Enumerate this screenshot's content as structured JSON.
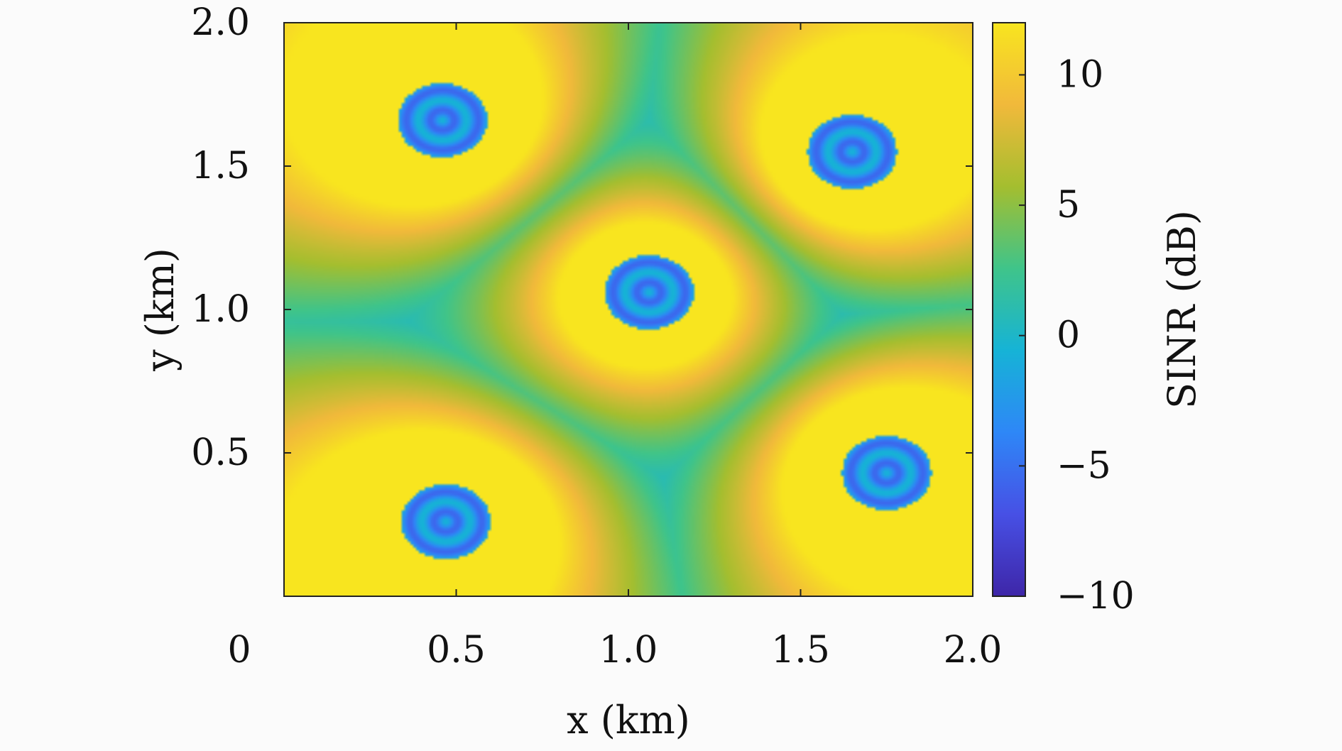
{
  "chart_data": {
    "type": "heatmap",
    "title": "",
    "xlabel": "x (km)",
    "ylabel": "y (km)",
    "xlim": [
      0,
      2.0
    ],
    "ylim": [
      0,
      2.0
    ],
    "x_ticks": [
      {
        "value": 0,
        "label": "0"
      },
      {
        "value": 0.5,
        "label": "0.5"
      },
      {
        "value": 1.0,
        "label": "1.0"
      },
      {
        "value": 1.5,
        "label": "1.5"
      },
      {
        "value": 2.0,
        "label": "2.0"
      }
    ],
    "y_ticks": [
      {
        "value": 0.5,
        "label": "0.5"
      },
      {
        "value": 1.0,
        "label": "1.0"
      },
      {
        "value": 1.5,
        "label": "1.5"
      },
      {
        "value": 2.0,
        "label": "2.0"
      }
    ],
    "colorbar": {
      "label": "SINR (dB)",
      "range": [
        -10,
        12
      ],
      "ticks": [
        {
          "value": -10,
          "label": "−10"
        },
        {
          "value": -5,
          "label": "−5"
        },
        {
          "value": 0,
          "label": "0"
        },
        {
          "value": 5,
          "label": "5"
        },
        {
          "value": 10,
          "label": "10"
        }
      ],
      "colormap": "parula",
      "colormap_stops": [
        "#3e26a8",
        "#4750e5",
        "#2e87f7",
        "#16b3d6",
        "#3fc48a",
        "#a4be2f",
        "#f1b93b",
        "#f8e51f"
      ]
    },
    "grid": false,
    "base_stations_km": [
      {
        "x": 0.47,
        "y": 0.26
      },
      {
        "x": 1.75,
        "y": 0.43
      },
      {
        "x": 1.06,
        "y": 1.06
      },
      {
        "x": 0.46,
        "y": 1.66
      },
      {
        "x": 1.65,
        "y": 1.55
      }
    ],
    "min_sinr_db": -10,
    "max_sinr_db": 12
  }
}
